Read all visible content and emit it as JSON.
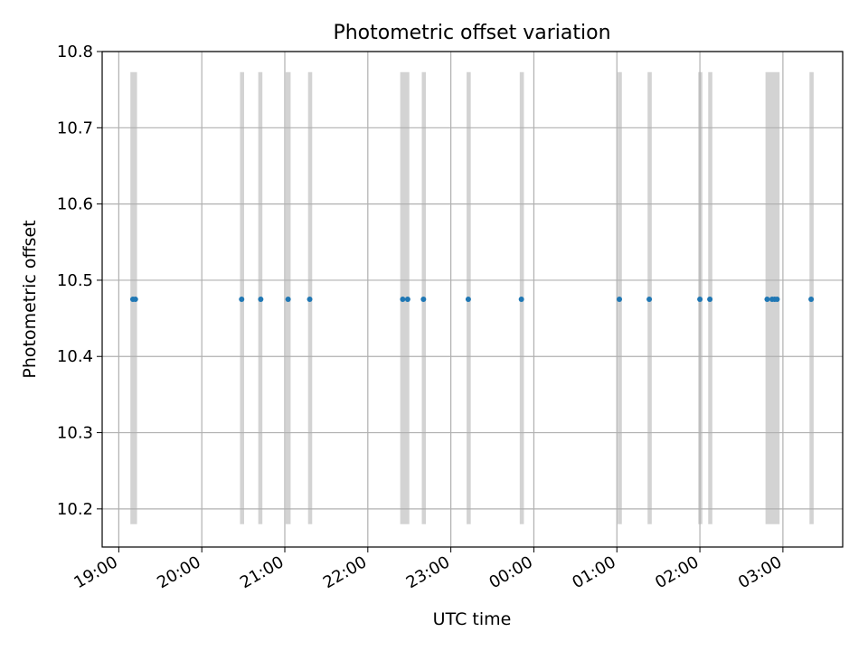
{
  "chart_data": {
    "type": "scatter",
    "title": "Photometric offset variation",
    "xlabel": "UTC time",
    "ylabel": "Photometric offset",
    "ylim": [
      10.15,
      10.8
    ],
    "xlim_hours": [
      18.8,
      27.72
    ],
    "grid": true,
    "x_tick_labels": [
      "19:00",
      "20:00",
      "21:00",
      "22:00",
      "23:00",
      "00:00",
      "01:00",
      "02:00",
      "03:00"
    ],
    "x_tick_hours": [
      19,
      20,
      21,
      22,
      23,
      24,
      25,
      26,
      27
    ],
    "y_ticks": [
      10.2,
      10.3,
      10.4,
      10.5,
      10.6,
      10.7,
      10.8
    ],
    "y_tick_labels": [
      "10.2",
      "10.3",
      "10.4",
      "10.5",
      "10.6",
      "10.7",
      "10.8"
    ],
    "points": {
      "x_hours": [
        19.17,
        19.2,
        20.48,
        20.71,
        21.04,
        21.3,
        22.42,
        22.48,
        22.67,
        23.21,
        23.85,
        25.03,
        25.39,
        26.0,
        26.12,
        26.81,
        26.87,
        26.9,
        26.93,
        27.34
      ],
      "y": [
        10.475,
        10.475,
        10.475,
        10.475,
        10.475,
        10.475,
        10.475,
        10.475,
        10.475,
        10.475,
        10.475,
        10.475,
        10.475,
        10.475,
        10.475,
        10.475,
        10.475,
        10.475,
        10.475,
        10.475
      ]
    },
    "bands": {
      "y_range": [
        10.18,
        10.773
      ],
      "intervals_hours": [
        [
          19.14,
          19.22
        ],
        [
          20.46,
          20.51
        ],
        [
          20.68,
          20.73
        ],
        [
          21.01,
          21.07
        ],
        [
          21.28,
          21.33
        ],
        [
          22.39,
          22.5
        ],
        [
          22.65,
          22.7
        ],
        [
          23.19,
          23.24
        ],
        [
          23.83,
          23.88
        ],
        [
          25.01,
          25.06
        ],
        [
          25.37,
          25.42
        ],
        [
          25.98,
          26.03
        ],
        [
          26.1,
          26.15
        ],
        [
          26.79,
          26.96
        ],
        [
          27.32,
          27.37
        ]
      ]
    },
    "colors": {
      "points": "#1f77b4",
      "bands": "#d3d3d3",
      "grid": "#b0b0b0"
    }
  }
}
